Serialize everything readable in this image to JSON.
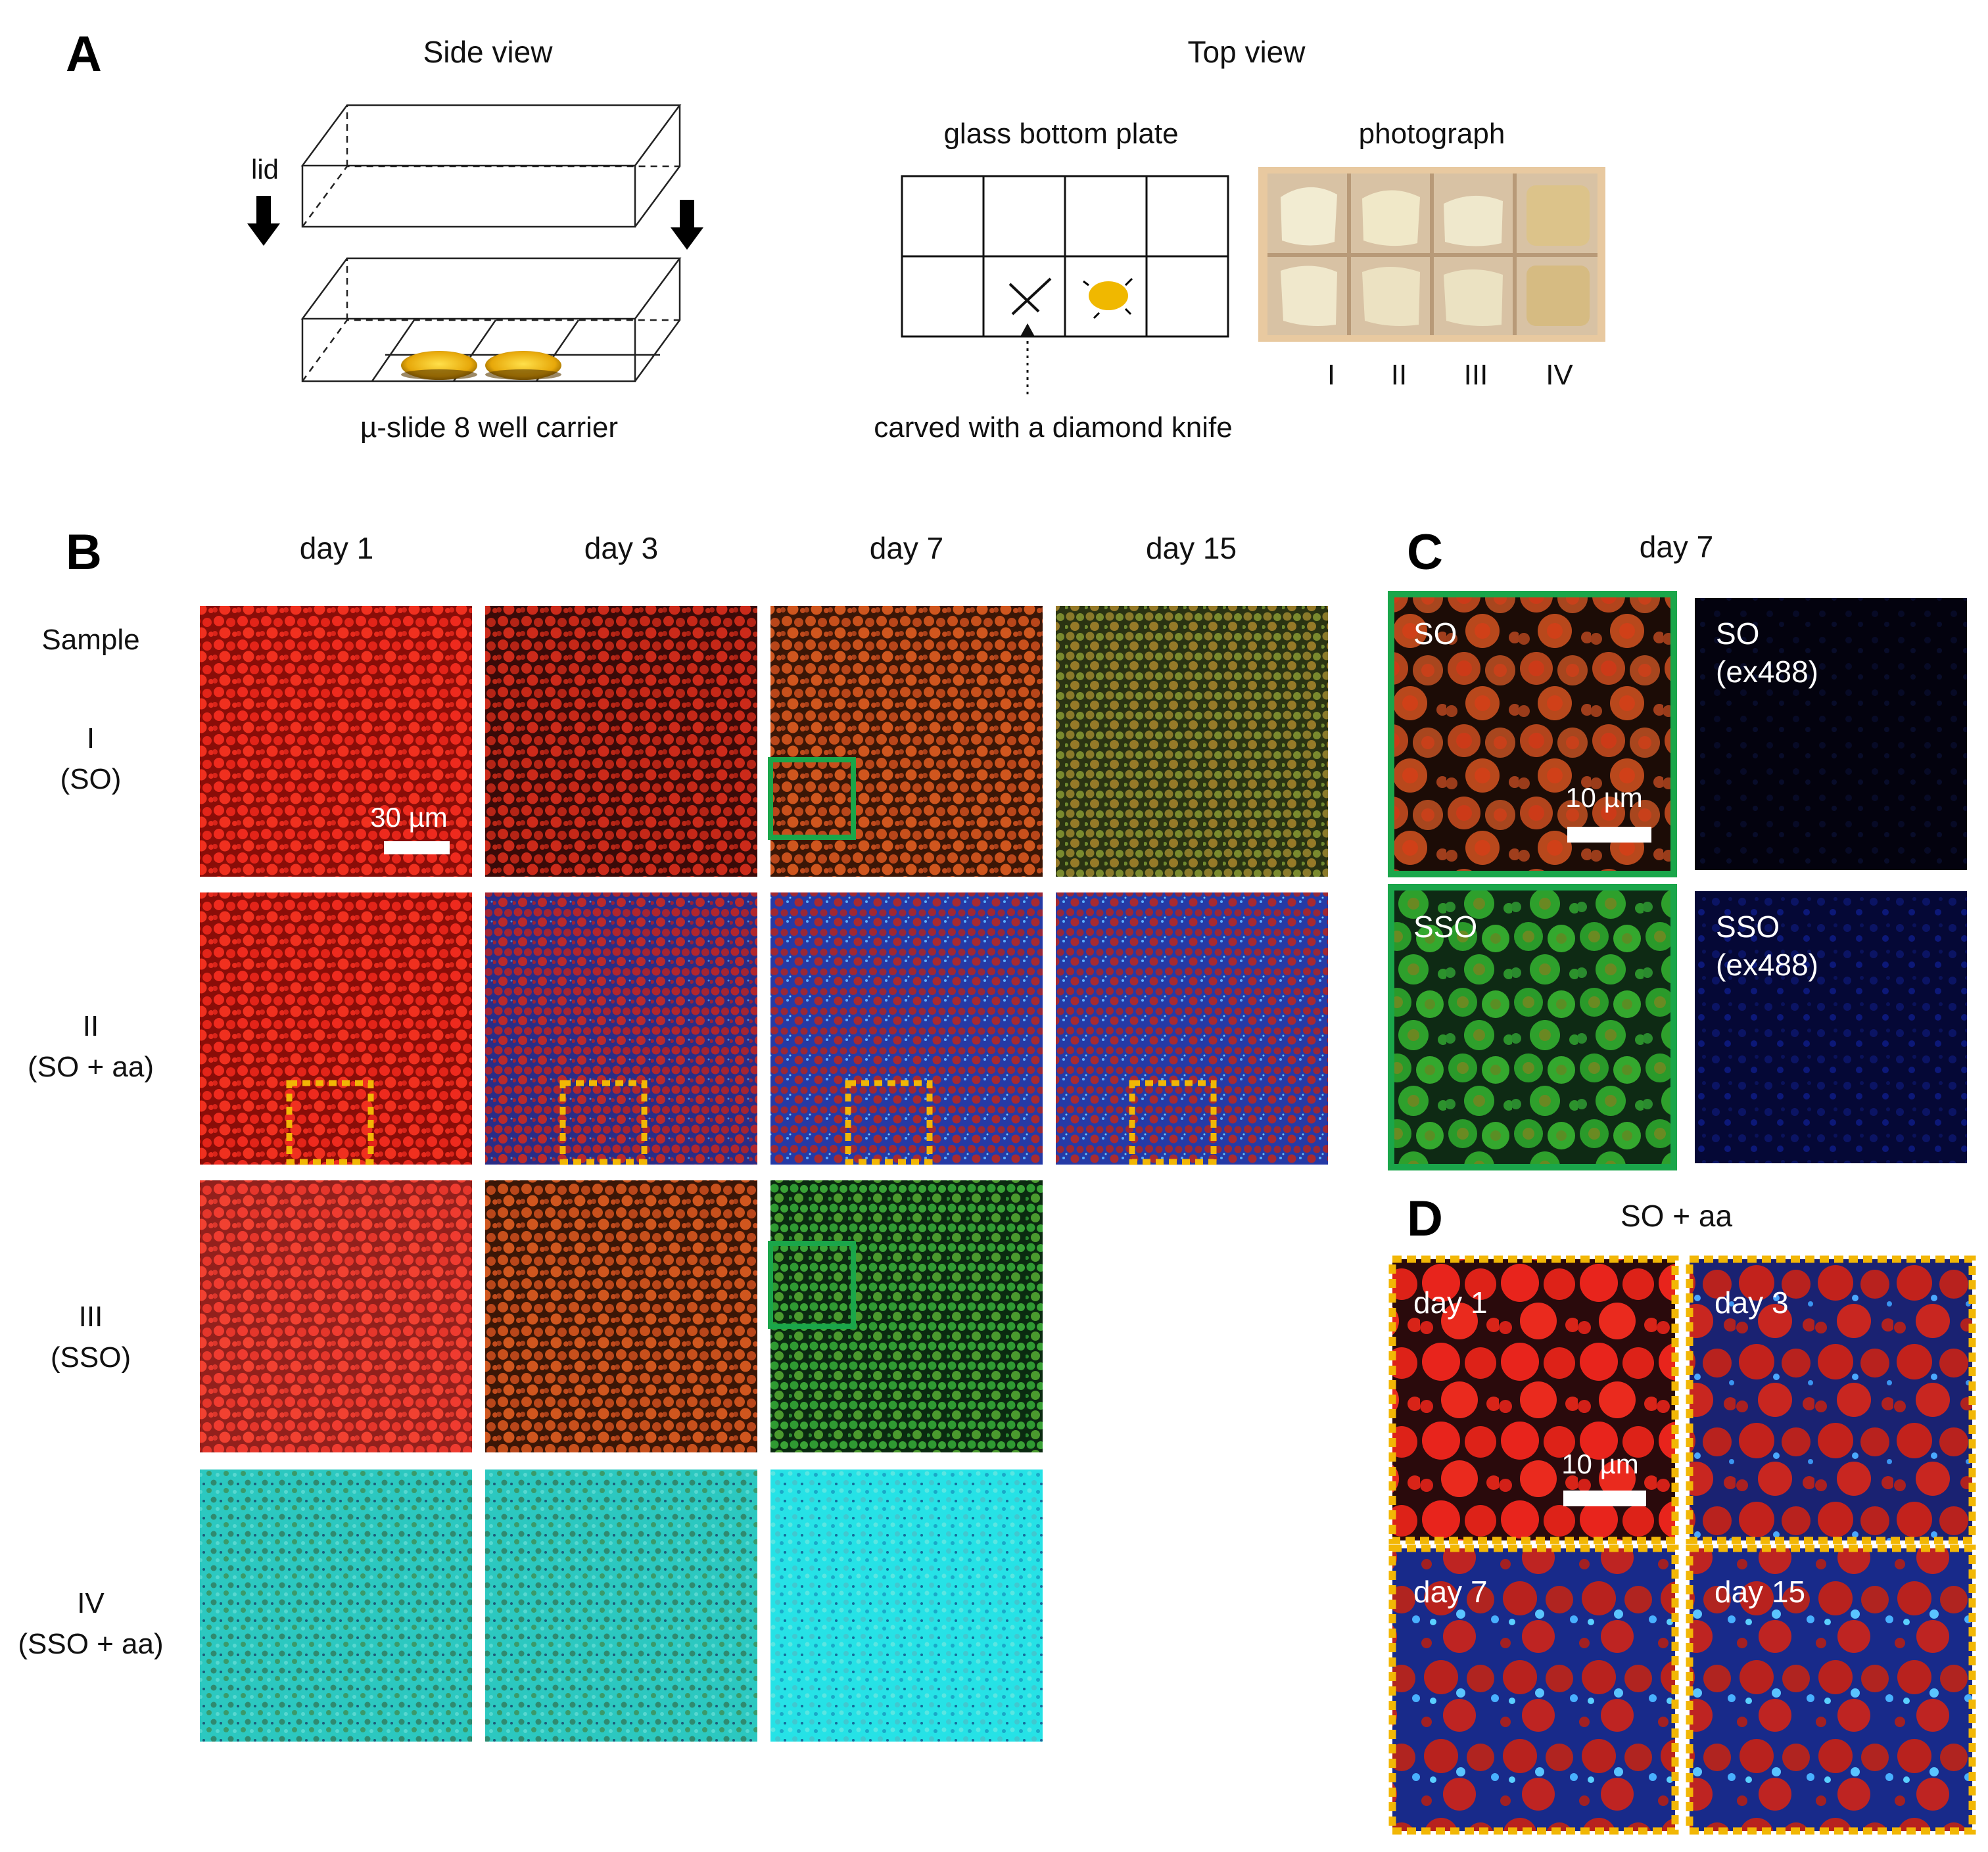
{
  "panel_a": {
    "letter": "A",
    "side_view_title": "Side view",
    "top_view_title": "Top view",
    "lid_label": "lid",
    "carrier_caption": "µ-slide 8 well carrier",
    "plate_title": "glass bottom plate",
    "photo_title": "photograph",
    "knife_caption": "carved with a diamond knife",
    "photo_samples": [
      "I",
      "II",
      "III",
      "IV"
    ]
  },
  "panel_b": {
    "letter": "B",
    "days": [
      "day 1",
      "day 3",
      "day 7",
      "day 15"
    ],
    "sample_header": "Sample",
    "rows": [
      {
        "numeral": "I",
        "name": "(SO)"
      },
      {
        "numeral": "II",
        "name": "(SO + aa)"
      },
      {
        "numeral": "III",
        "name": "(SSO)"
      },
      {
        "numeral": "IV",
        "name": "(SSO + aa)"
      }
    ],
    "scale_bar": "30 µm"
  },
  "panel_c": {
    "letter": "C",
    "title": "day 7",
    "images": [
      {
        "line1": "SO",
        "line2": ""
      },
      {
        "line1": "SO",
        "line2": "(ex488)"
      },
      {
        "line1": "SSO",
        "line2": ""
      },
      {
        "line1": "SSO",
        "line2": "(ex488)"
      }
    ],
    "scale_bar": "10 µm"
  },
  "panel_d": {
    "letter": "D",
    "title": "SO + aa",
    "images": [
      "day 1",
      "day 3",
      "day 7",
      "day 15"
    ],
    "scale_bar": "10 µm"
  },
  "colors": {
    "so_red": "#e0231c",
    "sso_green": "#2aa02e",
    "cyan": "#22e0e0",
    "box_green": "#1aa64a",
    "box_orange": "#f2b705",
    "droplet_gold": "#e7b10a"
  }
}
